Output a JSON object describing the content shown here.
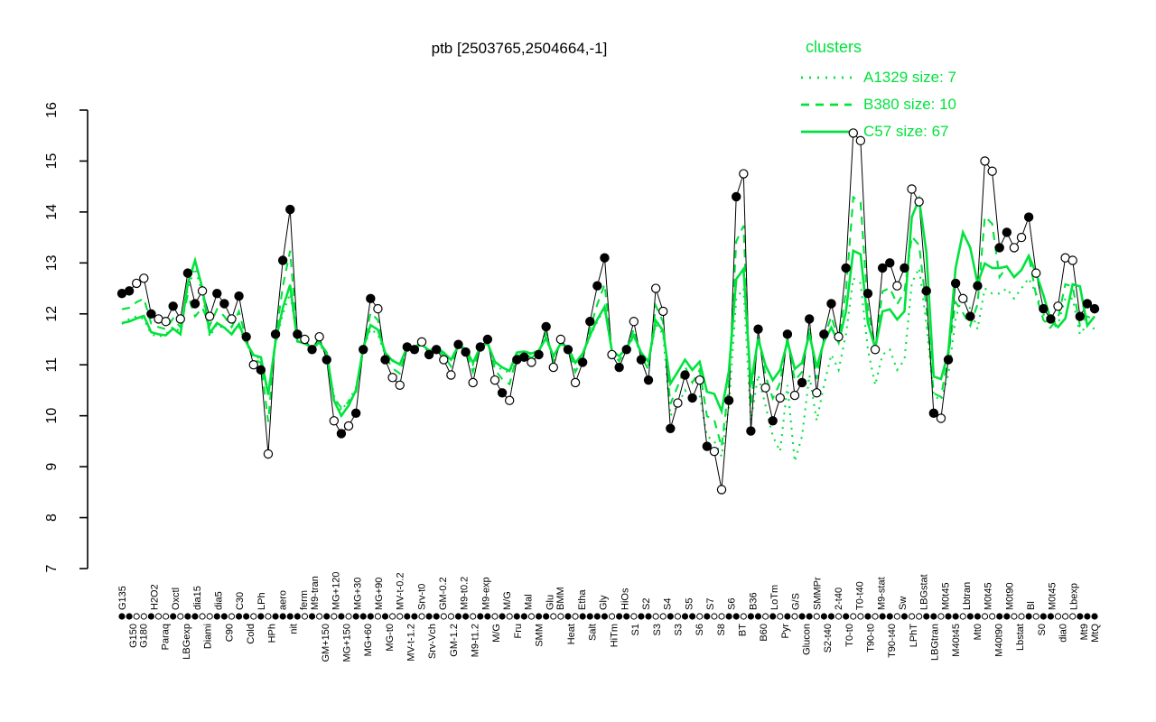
{
  "chart_data": {
    "type": "line",
    "title": "ptb [2503765,2504664,-1]",
    "xlabel": "",
    "ylabel": "",
    "ylim": [
      7,
      16
    ],
    "y_ticks": [
      7,
      8,
      9,
      10,
      11,
      12,
      13,
      14,
      15,
      16
    ],
    "grid": "off",
    "colors": {
      "cluster": "#00e33c",
      "profile": "#000000"
    },
    "legend": {
      "title": "clusters",
      "position": "top-right",
      "entries": [
        {
          "label": "A1329 size: 7",
          "style": "dotted"
        },
        {
          "label": "B380 size: 10",
          "style": "dashed"
        },
        {
          "label": "C57 size: 67",
          "style": "solid"
        }
      ]
    },
    "x_labels": [
      {
        "t": "G135",
        "r": "t"
      },
      {
        "t": "G150",
        "r": "b"
      },
      {
        "t": "G180",
        "r": "b"
      },
      {
        "t": "H2O2",
        "r": "t"
      },
      {
        "t": "Paraq",
        "r": "b"
      },
      {
        "t": "Oxctl",
        "r": "t"
      },
      {
        "t": "LBGexp",
        "r": "b"
      },
      {
        "t": "dia15",
        "r": "t"
      },
      {
        "t": "Diami",
        "r": "b"
      },
      {
        "t": "dia5",
        "r": "t"
      },
      {
        "t": "C90",
        "r": "b"
      },
      {
        "t": "C30",
        "r": "t"
      },
      {
        "t": "Cold",
        "r": "b"
      },
      {
        "t": "LPh",
        "r": "t"
      },
      {
        "t": "HPh",
        "r": "b"
      },
      {
        "t": "aero",
        "r": "t"
      },
      {
        "t": "nit",
        "r": "b"
      },
      {
        "t": "ferm",
        "r": "t"
      },
      {
        "t": "M9-tran",
        "r": "t"
      },
      {
        "t": "GM+150",
        "r": "b"
      },
      {
        "t": "MG+120",
        "r": "t"
      },
      {
        "t": "MG+150",
        "r": "b"
      },
      {
        "t": "MG+30",
        "r": "t"
      },
      {
        "t": "MG+60",
        "r": "b"
      },
      {
        "t": "MG+90",
        "r": "t"
      },
      {
        "t": "MG-t0",
        "r": "b"
      },
      {
        "t": "MV-t-0.2",
        "r": "t"
      },
      {
        "t": "MV-t-1.2",
        "r": "b"
      },
      {
        "t": "Srv-t0",
        "r": "t"
      },
      {
        "t": "Srv-Vch",
        "r": "b"
      },
      {
        "t": "GM-0.2",
        "r": "t"
      },
      {
        "t": "GM-1.2",
        "r": "b"
      },
      {
        "t": "M9-t0.2",
        "r": "t"
      },
      {
        "t": "M9-t1.2",
        "r": "b"
      },
      {
        "t": "M9-exp",
        "r": "t"
      },
      {
        "t": "M/G",
        "r": "b"
      },
      {
        "t": "M/G",
        "r": "t"
      },
      {
        "t": "Fru",
        "r": "b"
      },
      {
        "t": "Mal",
        "r": "t"
      },
      {
        "t": "SMM",
        "r": "b"
      },
      {
        "t": "Glu",
        "r": "t"
      },
      {
        "t": "BMM",
        "r": "t"
      },
      {
        "t": "Heat",
        "r": "b"
      },
      {
        "t": "Etha",
        "r": "t"
      },
      {
        "t": "Salt",
        "r": "b"
      },
      {
        "t": "Gly",
        "r": "t"
      },
      {
        "t": "HiTm",
        "r": "b"
      },
      {
        "t": "HiOs",
        "r": "t"
      },
      {
        "t": "S1",
        "r": "b"
      },
      {
        "t": "S2",
        "r": "t"
      },
      {
        "t": "S3",
        "r": "b"
      },
      {
        "t": "S4",
        "r": "t"
      },
      {
        "t": "S3",
        "r": "b"
      },
      {
        "t": "S5",
        "r": "t"
      },
      {
        "t": "S6",
        "r": "b"
      },
      {
        "t": "S7",
        "r": "t"
      },
      {
        "t": "S8",
        "r": "b"
      },
      {
        "t": "S6",
        "r": "t"
      },
      {
        "t": "BT",
        "r": "b"
      },
      {
        "t": "B36",
        "r": "t"
      },
      {
        "t": "B60",
        "r": "b"
      },
      {
        "t": "LoTm",
        "r": "t"
      },
      {
        "t": "Pyr",
        "r": "b"
      },
      {
        "t": "G/S",
        "r": "t"
      },
      {
        "t": "Glucon",
        "r": "b"
      },
      {
        "t": "SMMPr",
        "r": "t"
      },
      {
        "t": "S2-t40",
        "r": "b"
      },
      {
        "t": "2-t40",
        "r": "t"
      },
      {
        "t": "T0-t0",
        "r": "b"
      },
      {
        "t": "T0-t40",
        "r": "t"
      },
      {
        "t": "T90-t0",
        "r": "b"
      },
      {
        "t": "M9-stat",
        "r": "t"
      },
      {
        "t": "T90-t40",
        "r": "b"
      },
      {
        "t": "Sw",
        "r": "t"
      },
      {
        "t": "LPhT",
        "r": "b"
      },
      {
        "t": "LBGstat",
        "r": "t"
      },
      {
        "t": "LBGtran",
        "r": "b"
      },
      {
        "t": "M0t45",
        "r": "t"
      },
      {
        "t": "M40t45",
        "r": "b"
      },
      {
        "t": "Lbtran",
        "r": "t"
      },
      {
        "t": "Mt0",
        "r": "b"
      },
      {
        "t": "M0t45",
        "r": "t"
      },
      {
        "t": "M40t90",
        "r": "b"
      },
      {
        "t": "M0t90",
        "r": "t"
      },
      {
        "t": "Lbstat",
        "r": "b"
      },
      {
        "t": "Bl",
        "r": "t"
      },
      {
        "t": "S0",
        "r": "b"
      },
      {
        "t": "M0t45",
        "r": "t"
      },
      {
        "t": "dia0",
        "r": "b"
      },
      {
        "t": "Lbexp",
        "r": "t"
      },
      {
        "t": "Mt9",
        "r": "b"
      },
      {
        "t": "MtQ",
        "r": "b"
      }
    ],
    "series": [
      {
        "name": "profile",
        "role": "gene-profile",
        "color": "#000000",
        "values": [
          12.4,
          12.45,
          12.6,
          12.7,
          12.0,
          11.9,
          11.85,
          12.15,
          11.9,
          12.8,
          12.2,
          12.45,
          11.95,
          12.4,
          12.2,
          11.9,
          12.35,
          11.55,
          11.0,
          10.9,
          9.25,
          11.6,
          13.05,
          14.05,
          11.6,
          11.5,
          11.3,
          11.55,
          11.1,
          9.9,
          9.65,
          9.8,
          10.05,
          11.3,
          12.3,
          12.1,
          11.1,
          10.75,
          10.6,
          11.35,
          11.3,
          11.45,
          11.2,
          11.3,
          11.1,
          10.8,
          11.4,
          11.25,
          10.65,
          11.35,
          11.5,
          10.7,
          10.45,
          10.3,
          11.1,
          11.15,
          11.05,
          11.2,
          11.75,
          10.95,
          11.5,
          11.3,
          10.65,
          11.05,
          11.85,
          12.55,
          13.1,
          11.2,
          10.95,
          11.3,
          11.85,
          11.1,
          10.7,
          12.5,
          12.05,
          9.75,
          10.25,
          10.8,
          10.35,
          10.7,
          9.4,
          9.3,
          8.55,
          10.3,
          14.3,
          14.75,
          9.7,
          11.7,
          10.55,
          9.9,
          10.35,
          11.6,
          10.4,
          10.65,
          11.9,
          10.45,
          11.6,
          12.2,
          11.55,
          12.9,
          15.55,
          15.4,
          12.4,
          11.3,
          12.9,
          13.0,
          12.55,
          12.9,
          14.45,
          14.2,
          12.45,
          10.05,
          9.95,
          11.1,
          12.6,
          12.3,
          11.95,
          12.55,
          15.0,
          14.8,
          13.3,
          13.6,
          13.3,
          13.5,
          13.9,
          12.8,
          12.1,
          11.9,
          12.15,
          13.1,
          13.05,
          11.95,
          12.2,
          12.1
        ],
        "markers": [
          "f",
          "f",
          "o",
          "o",
          "f",
          "o",
          "o",
          "f",
          "o",
          "f",
          "f",
          "o",
          "o",
          "f",
          "f",
          "o",
          "f",
          "f",
          "o",
          "f",
          "o",
          "f",
          "f",
          "f",
          "f",
          "o",
          "f",
          "o",
          "f",
          "o",
          "f",
          "o",
          "f",
          "f",
          "f",
          "o",
          "f",
          "o",
          "o",
          "f",
          "f",
          "o",
          "f",
          "f",
          "o",
          "o",
          "f",
          "f",
          "o",
          "f",
          "f",
          "o",
          "f",
          "o",
          "f",
          "f",
          "o",
          "f",
          "f",
          "o",
          "o",
          "f",
          "o",
          "f",
          "f",
          "f",
          "f",
          "o",
          "f",
          "f",
          "o",
          "f",
          "f",
          "o",
          "o",
          "f",
          "o",
          "f",
          "f",
          "o",
          "f",
          "o",
          "o",
          "f",
          "f",
          "o",
          "f",
          "f",
          "o",
          "f",
          "o",
          "f",
          "o",
          "f",
          "f",
          "o",
          "f",
          "f",
          "o",
          "f",
          "o",
          "o",
          "f",
          "o",
          "f",
          "f",
          "o",
          "f",
          "o",
          "o",
          "f",
          "f",
          "o",
          "f",
          "f",
          "o",
          "f",
          "f",
          "o",
          "o",
          "f",
          "f",
          "o",
          "o",
          "f",
          "o",
          "f",
          "f",
          "o",
          "o",
          "o",
          "f",
          "f",
          "f"
        ]
      },
      {
        "name": "A1329",
        "style": "dotted",
        "values": [
          11.8,
          11.9,
          11.95,
          11.9,
          11.6,
          11.55,
          11.6,
          11.75,
          11.65,
          12.5,
          12.9,
          12.4,
          11.55,
          11.8,
          11.7,
          11.65,
          11.75,
          11.4,
          11.2,
          11.1,
          10.5,
          11.4,
          12.0,
          12.4,
          11.5,
          11.4,
          11.35,
          11.4,
          11.2,
          10.4,
          10.1,
          10.3,
          10.55,
          11.3,
          11.7,
          11.6,
          11.2,
          11.1,
          11.0,
          11.3,
          11.35,
          11.45,
          11.25,
          11.3,
          11.2,
          11.1,
          11.4,
          11.3,
          11.0,
          11.3,
          11.45,
          11.0,
          10.9,
          10.85,
          11.2,
          11.25,
          11.2,
          11.3,
          11.5,
          11.15,
          11.4,
          11.3,
          11.0,
          11.2,
          11.55,
          11.85,
          12.1,
          11.25,
          11.1,
          11.3,
          11.55,
          11.2,
          11.0,
          11.8,
          11.6,
          10.0,
          10.2,
          10.5,
          10.3,
          10.4,
          9.6,
          9.5,
          9.2,
          10.2,
          12.3,
          12.5,
          9.9,
          10.8,
          10.2,
          9.6,
          9.3,
          10.6,
          9.1,
          9.6,
          10.8,
          9.9,
          10.6,
          11.2,
          10.9,
          11.6,
          12.7,
          12.6,
          11.3,
          10.6,
          11.2,
          11.3,
          10.9,
          11.1,
          12.6,
          12.9,
          11.8,
          10.4,
          10.3,
          10.8,
          11.9,
          12.4,
          12.1,
          11.7,
          12.5,
          12.4,
          12.4,
          12.5,
          12.3,
          12.5,
          12.7,
          12.4,
          12.0,
          11.7,
          11.8,
          12.3,
          12.3,
          11.6,
          11.8,
          11.7
        ]
      },
      {
        "name": "B380",
        "style": "dashed",
        "values": [
          12.09,
          12.12,
          12.23,
          12.3,
          11.81,
          11.74,
          11.7,
          11.91,
          11.74,
          12.37,
          11.95,
          12.12,
          11.77,
          12.09,
          11.95,
          11.74,
          12.05,
          11.49,
          11.11,
          11.04,
          9.88,
          11.53,
          12.54,
          13.24,
          11.53,
          11.46,
          11.32,
          11.49,
          11.18,
          10.34,
          10.16,
          10.27,
          10.44,
          11.32,
          12.02,
          11.88,
          11.18,
          10.93,
          10.83,
          11.35,
          11.32,
          11.42,
          11.25,
          11.32,
          11.18,
          10.97,
          11.39,
          11.28,
          10.86,
          11.35,
          11.46,
          10.9,
          10.72,
          10.62,
          11.18,
          11.21,
          11.14,
          11.25,
          11.63,
          11.07,
          11.46,
          11.32,
          10.86,
          11.14,
          11.7,
          12.19,
          12.58,
          11.25,
          11.07,
          11.32,
          11.7,
          11.18,
          10.9,
          12.16,
          11.84,
          10.23,
          10.58,
          10.97,
          10.65,
          10.9,
          9.99,
          9.92,
          9.39,
          10.62,
          13.42,
          13.73,
          10.2,
          11.6,
          10.79,
          10.34,
          10.65,
          11.53,
          10.69,
          10.86,
          11.74,
          10.72,
          11.53,
          11.95,
          11.49,
          12.44,
          14.29,
          14.19,
          12.09,
          11.32,
          12.44,
          12.51,
          12.19,
          12.44,
          13.52,
          13.35,
          12.12,
          10.44,
          10.37,
          11.18,
          12.23,
          12.02,
          11.77,
          12.19,
          13.91,
          13.77,
          12.72,
          12.93,
          12.72,
          12.86,
          13.14,
          12.37,
          11.88,
          11.74,
          11.91,
          12.58,
          12.54,
          11.77,
          11.95,
          11.88
        ]
      },
      {
        "name": "C57",
        "style": "solid",
        "values": [
          11.82,
          11.85,
          11.91,
          11.96,
          11.64,
          11.6,
          11.58,
          11.71,
          11.6,
          12.6,
          13.05,
          12.5,
          11.62,
          11.82,
          11.73,
          11.6,
          11.8,
          11.44,
          11.19,
          11.15,
          10.41,
          11.46,
          12.12,
          12.57,
          11.46,
          11.42,
          11.33,
          11.44,
          11.24,
          10.3,
          10.0,
          10.2,
          10.5,
          11.33,
          11.78,
          11.69,
          11.24,
          11.08,
          11.01,
          11.35,
          11.33,
          11.4,
          11.28,
          11.33,
          11.24,
          11.1,
          11.37,
          11.31,
          11.04,
          11.35,
          11.42,
          11.06,
          10.95,
          10.88,
          11.24,
          11.26,
          11.22,
          11.28,
          11.53,
          11.17,
          11.42,
          11.33,
          11.04,
          11.22,
          11.58,
          11.89,
          12.14,
          11.28,
          11.17,
          11.33,
          11.58,
          11.24,
          11.06,
          11.87,
          11.67,
          10.63,
          10.86,
          11.1,
          10.9,
          11.06,
          10.47,
          10.43,
          10.09,
          10.88,
          12.68,
          12.88,
          10.61,
          11.51,
          10.99,
          10.7,
          10.9,
          11.46,
          10.92,
          11.04,
          11.6,
          10.95,
          11.46,
          11.73,
          11.44,
          12.05,
          13.24,
          13.17,
          11.82,
          11.33,
          12.05,
          12.09,
          11.89,
          12.05,
          13.9,
          14.25,
          13.2,
          10.77,
          10.72,
          11.24,
          12.9,
          13.6,
          13.3,
          12.6,
          12.99,
          12.9,
          12.9,
          12.93,
          12.72,
          12.86,
          13.14,
          12.8,
          12.37,
          11.88,
          11.74,
          11.91,
          12.58,
          12.54,
          11.77,
          11.95
        ]
      }
    ]
  }
}
